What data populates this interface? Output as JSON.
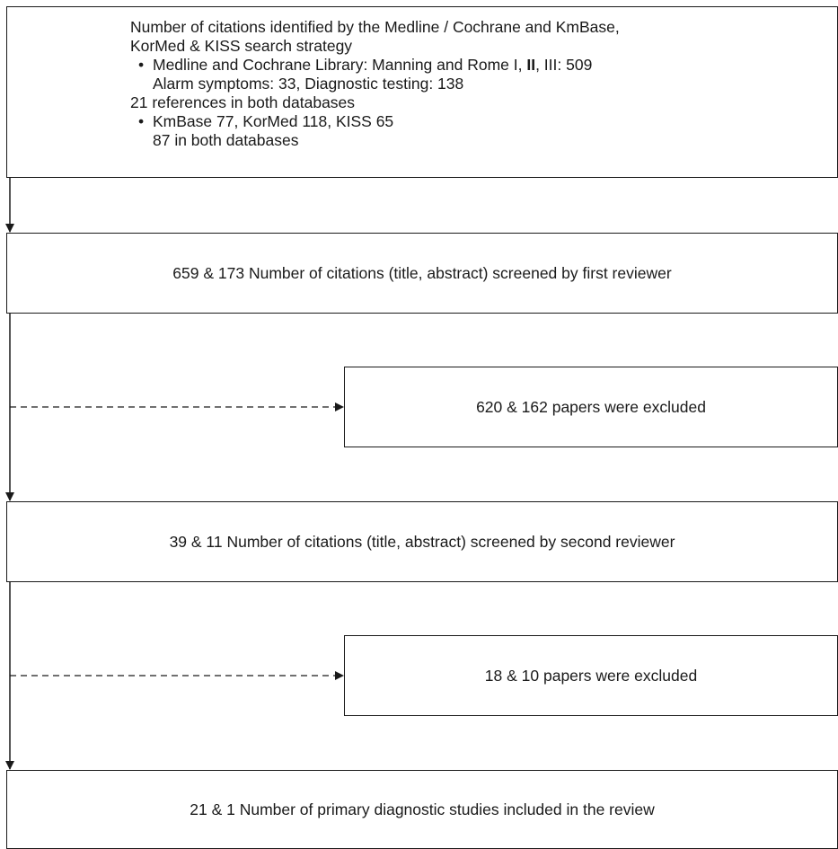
{
  "diagram": {
    "box1": {
      "line1": "Number of citations identified by the Medline / Cochrane and KmBase,",
      "line2": "KorMed & KISS search strategy",
      "bullet_symbol": "•",
      "bullet1_a": "Medline and Cochrane Library: Manning and Rome I, ",
      "bullet1_bold": "II",
      "bullet1_b": ", III: 509",
      "bullet1_line2": "Alarm symptoms: 33, Diagnostic testing: 138",
      "line3": "21 references in both databases",
      "bullet2_line1": "KmBase 77, KorMed 118, KISS 65",
      "bullet2_line2": "87 in both databases"
    },
    "box2": "659 & 173 Number of citations (title, abstract) screened by first reviewer",
    "box3": "620 & 162 papers were excluded",
    "box4": "39 & 11 Number of citations (title, abstract) screened by second reviewer",
    "box5": "18 & 10 papers were excluded",
    "box6": "21 & 1 Number of primary diagnostic studies included in the review"
  }
}
